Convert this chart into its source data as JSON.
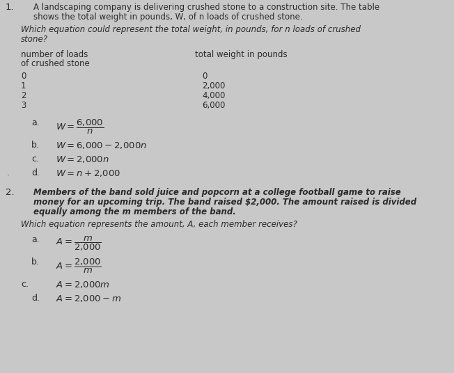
{
  "bg_color": "#c8c8c8",
  "text_color": "#2a2a2a",
  "font_size_body": 8.5,
  "font_size_option": 9.0,
  "font_size_q_num": 9.5,
  "font_size_table": 8.5,
  "q1_line1": "A landscaping company is delivering crushed stone to a construction site. The table",
  "q1_line2": "shows the total weight in pounds, W, of n loads of crushed stone.",
  "q1_q_line1": "Which equation could represent the total weight, in pounds, for n loads of crushed",
  "q1_q_line2": "stone?",
  "table_col1_header_l1": "number of loads",
  "table_col1_header_l2": "of crushed stone",
  "table_col2_header": "total weight in pounds",
  "table_col1_vals": [
    "0",
    "1",
    "2",
    "3"
  ],
  "table_col2_vals": [
    "0",
    "2,000",
    "4,000",
    "6,000"
  ],
  "q2_line1": "Members of the band sold juice and popcorn at a college football game to raise",
  "q2_line2": "money for an upcoming trip. The band raised $2,000. The amount raised is divided",
  "q2_line3": "equally among the m members of the band.",
  "q2_q": "Which equation represents the amount, A, each member receives?"
}
